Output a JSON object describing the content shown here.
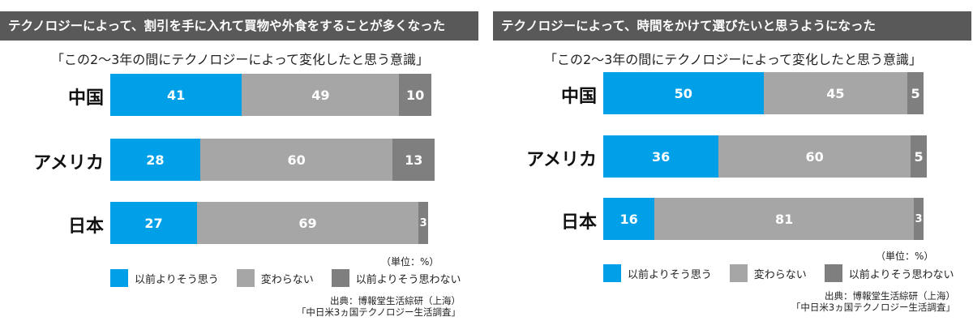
{
  "colors": {
    "header_bg": "#595959",
    "seg1": "#00A0E9",
    "seg2": "#A6A6A6",
    "seg3": "#7F7F7F"
  },
  "legend": [
    "以前よりそう思う",
    "変わらない",
    "以前よりそう思わない"
  ],
  "unit_label": "（単位：%）",
  "source": {
    "line1": "出典：博報堂生活綜研（上海）",
    "line2": "「中日米3ヵ国テクノロジー生活調査」"
  },
  "chart_data": [
    {
      "type": "bar",
      "orientation": "horizontal-stacked",
      "header": "テクノロジーによって、割引を手に入れて買物や外食をすることが多くなった",
      "title": "「この2～3年の間にテクノロジーによって変化したと思う意識」",
      "categories": [
        "中国",
        "アメリカ",
        "日本"
      ],
      "series": [
        {
          "name": "以前よりそう思う",
          "values": [
            41,
            28,
            27
          ]
        },
        {
          "name": "変わらない",
          "values": [
            49,
            60,
            69
          ]
        },
        {
          "name": "以前よりそう思わない",
          "values": [
            10,
            13,
            3
          ]
        }
      ],
      "xlim": [
        0,
        100
      ],
      "unit": "%"
    },
    {
      "type": "bar",
      "orientation": "horizontal-stacked",
      "header": "テクノロジーによって、時間をかけて選びたいと思うようになった",
      "title": "「この2～3年の間にテクノロジーによって変化したと思う意識」",
      "categories": [
        "中国",
        "アメリカ",
        "日本"
      ],
      "series": [
        {
          "name": "以前よりそう思う",
          "values": [
            50,
            36,
            16
          ]
        },
        {
          "name": "変わらない",
          "values": [
            45,
            60,
            81
          ]
        },
        {
          "name": "以前よりそう思わない",
          "values": [
            5,
            5,
            3
          ]
        }
      ],
      "xlim": [
        0,
        100
      ],
      "unit": "%"
    }
  ]
}
